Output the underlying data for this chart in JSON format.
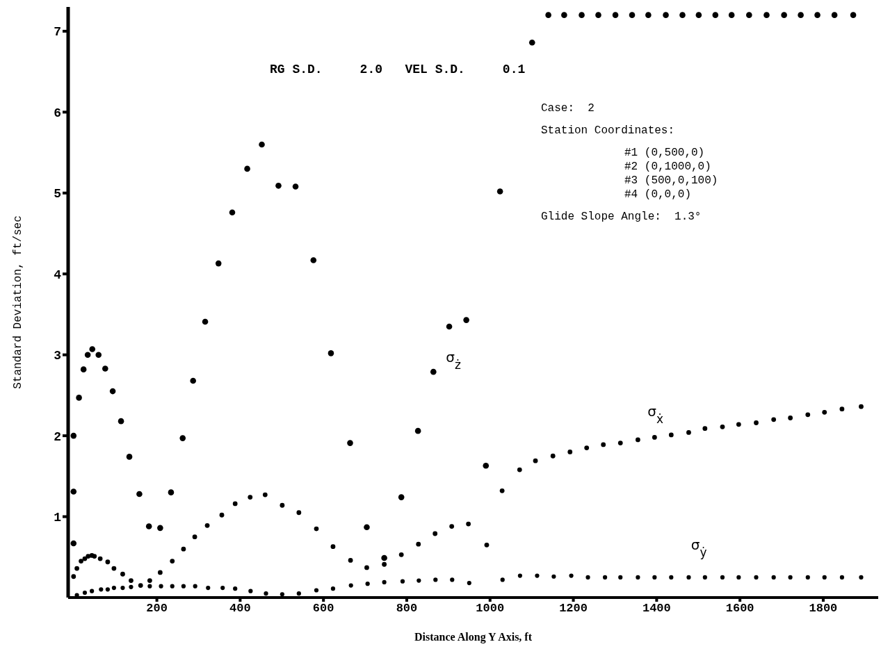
{
  "chart_data": {
    "type": "scatter",
    "title": "RG S.D.     2.0   VEL S.D.     0.1",
    "xlabel": "Distance Along Y Axis, ft",
    "ylabel": "Standard Deviation, ft/sec",
    "annotations": [
      "Case:  2",
      "Station Coordinates:",
      "#1 (0,500,0)",
      "#2 (0,1000,0)",
      "#3 (500,0,100)",
      "#4 (0,0,0)",
      "Glide Slope Angle:  1.3°"
    ],
    "xlim": [
      -13,
      1932
    ],
    "ylim": [
      0,
      7.3
    ],
    "xticks": [
      200,
      400,
      600,
      800,
      1000,
      1200,
      1400,
      1600,
      1800
    ],
    "yticks": [
      1,
      2,
      3,
      4,
      5,
      6,
      7
    ],
    "grid": false,
    "legend": false,
    "marker": "circle",
    "series": [
      {
        "name": "σ$_{ż}$",
        "color": "#000000",
        "x": [
          0,
          0,
          0,
          13,
          24,
          34,
          45,
          60,
          76,
          94,
          114,
          134,
          158,
          181,
          208,
          234,
          262,
          287,
          316,
          348,
          381,
          417,
          452,
          492,
          533,
          576,
          618,
          664,
          704,
          746,
          787,
          827,
          864,
          902,
          943,
          990,
          1024,
          1101,
          1140,
          1178,
          1220,
          1260,
          1301,
          1341,
          1380,
          1422,
          1462,
          1501,
          1541,
          1580,
          1622,
          1664,
          1706,
          1746,
          1786,
          1827,
          1872
        ],
        "values": [
          0.67,
          1.31,
          2.0,
          2.47,
          2.82,
          3.0,
          3.07,
          3.0,
          2.83,
          2.55,
          2.18,
          1.74,
          1.28,
          0.88,
          0.86,
          1.3,
          1.97,
          2.68,
          3.41,
          4.13,
          4.76,
          5.3,
          5.6,
          5.09,
          5.08,
          4.17,
          3.02,
          1.91,
          0.87,
          0.49,
          1.24,
          2.06,
          2.79,
          3.35,
          3.43,
          1.63,
          5.02,
          6.86,
          7.2,
          7.2,
          7.2,
          7.2,
          7.2,
          7.2,
          7.2,
          7.2,
          7.2,
          7.2,
          7.2,
          7.2,
          7.2,
          7.2,
          7.2,
          7.2,
          7.2,
          7.2,
          7.2
        ]
      },
      {
        "name": "σ$_{ẋ}$",
        "color": "#000000",
        "x": [
          0,
          8,
          18,
          27,
          35,
          44,
          50,
          64,
          82,
          97,
          118,
          138,
          161,
          183,
          208,
          237,
          264,
          291,
          321,
          356,
          388,
          424,
          460,
          501,
          541,
          583,
          623,
          665,
          704,
          746,
          787,
          828,
          868,
          908,
          948,
          992,
          1029,
          1071,
          1109,
          1151,
          1192,
          1232,
          1272,
          1313,
          1355,
          1395,
          1435,
          1477,
          1516,
          1558,
          1597,
          1639,
          1681,
          1721,
          1763,
          1803,
          1845,
          1891
        ],
        "values": [
          0.26,
          0.36,
          0.45,
          0.48,
          0.51,
          0.52,
          0.51,
          0.48,
          0.44,
          0.36,
          0.29,
          0.21,
          0.15,
          0.21,
          0.31,
          0.45,
          0.6,
          0.75,
          0.89,
          1.02,
          1.16,
          1.24,
          1.27,
          1.14,
          1.05,
          0.85,
          0.63,
          0.46,
          0.37,
          0.41,
          0.53,
          0.66,
          0.79,
          0.88,
          0.91,
          0.65,
          1.32,
          1.58,
          1.69,
          1.75,
          1.8,
          1.85,
          1.89,
          1.91,
          1.95,
          1.98,
          2.01,
          2.04,
          2.09,
          2.11,
          2.14,
          2.16,
          2.2,
          2.22,
          2.26,
          2.29,
          2.33,
          2.36
        ]
      },
      {
        "name": "σ$_{ẏ}$",
        "color": "#000000",
        "x": [
          8,
          27,
          44,
          66,
          82,
          97,
          118,
          138,
          183,
          210,
          237,
          264,
          292,
          323,
          358,
          388,
          425,
          462,
          501,
          541,
          583,
          623,
          666,
          706,
          746,
          790,
          829,
          869,
          909,
          950,
          1030,
          1072,
          1113,
          1153,
          1195,
          1235,
          1276,
          1313,
          1355,
          1395,
          1435,
          1477,
          1516,
          1558,
          1597,
          1639,
          1681,
          1721,
          1763,
          1803,
          1845,
          1891
        ],
        "values": [
          0.03,
          0.06,
          0.08,
          0.1,
          0.1,
          0.12,
          0.12,
          0.13,
          0.14,
          0.14,
          0.14,
          0.14,
          0.14,
          0.12,
          0.12,
          0.11,
          0.08,
          0.05,
          0.04,
          0.05,
          0.09,
          0.11,
          0.15,
          0.17,
          0.19,
          0.2,
          0.21,
          0.22,
          0.22,
          0.18,
          0.22,
          0.27,
          0.27,
          0.26,
          0.27,
          0.25,
          0.25,
          0.25,
          0.25,
          0.25,
          0.25,
          0.25,
          0.25,
          0.25,
          0.25,
          0.25,
          0.25,
          0.25,
          0.25,
          0.25,
          0.25,
          0.25
        ]
      }
    ]
  }
}
